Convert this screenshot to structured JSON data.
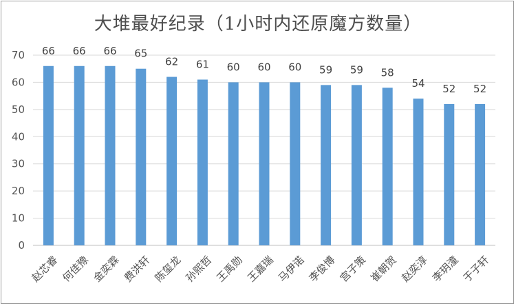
{
  "chart_data": {
    "type": "bar",
    "title": "大堆最好纪录（1小时内还原魔方数量）",
    "categories": [
      "赵芯睿",
      "何佳豫",
      "金奕霖",
      "费洪轩",
      "陈玺龙",
      "孙熙哲",
      "王禹勋",
      "王嘉瑞",
      "马伊诺",
      "李俊博",
      "宫子策",
      "崔朝贺",
      "赵奕淳",
      "李玥潼",
      "于子轩"
    ],
    "values": [
      66,
      66,
      66,
      65,
      62,
      61,
      60,
      60,
      60,
      59,
      59,
      58,
      54,
      52,
      52
    ],
    "ylim": [
      0,
      70
    ],
    "yticks": [
      0,
      10,
      20,
      30,
      40,
      50,
      60,
      70
    ],
    "grid": true,
    "bar_color": "#5b9bd5"
  }
}
